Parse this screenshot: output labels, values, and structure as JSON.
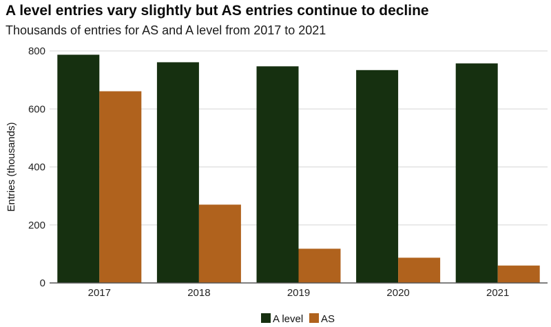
{
  "header": {
    "title": "A level entries vary slightly but AS entries continue to decline",
    "subtitle": "Thousands of entries for AS and A level from 2017 to 2021"
  },
  "chart_data": {
    "type": "bar",
    "categories": [
      "2017",
      "2018",
      "2019",
      "2020",
      "2021"
    ],
    "series": [
      {
        "name": "A level",
        "color": "#163010",
        "values": [
          787,
          761,
          747,
          734,
          757
        ]
      },
      {
        "name": "AS",
        "color": "#b0621d",
        "values": [
          661,
          270,
          118,
          87,
          60
        ]
      }
    ],
    "xlabel": "",
    "ylabel": "Entries (thousands)",
    "ylim": [
      0,
      800
    ],
    "yticks": [
      0,
      200,
      400,
      600,
      800
    ],
    "grid": true,
    "legend": "bottom-center"
  }
}
